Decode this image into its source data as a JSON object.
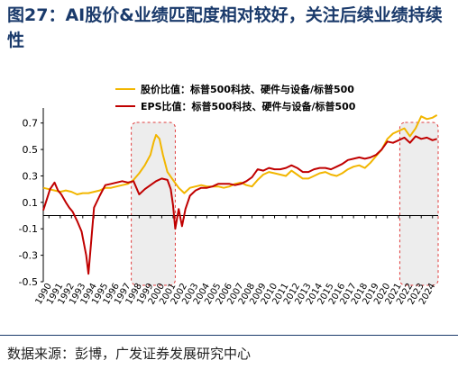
{
  "figure": {
    "title": "图27：AI股价&业绩匹配度相对较好，关注后续业绩持续性",
    "source": "数据来源：彭博，广发证券发展研究中心"
  },
  "chart_data": {
    "type": "line",
    "x_tick_labels": [
      "1990",
      "1991",
      "1992",
      "1993",
      "1994",
      "1995",
      "1996",
      "1997",
      "1998",
      "1999",
      "2000",
      "2001",
      "2002",
      "2003",
      "2004",
      "2005",
      "2006",
      "2007",
      "2008",
      "2009",
      "2010",
      "2011",
      "2012",
      "2013",
      "2014",
      "2015",
      "2016",
      "2017",
      "2018",
      "2019",
      "2020",
      "2021",
      "2022",
      "2023",
      "2024"
    ],
    "y_ticks": [
      -0.5,
      -0.3,
      -0.1,
      0.1,
      0.3,
      0.5,
      0.7
    ],
    "ylim": [
      -0.5,
      0.8
    ],
    "xlim": [
      1990,
      2025
    ],
    "grid": false,
    "legend_position": "top-center",
    "shaded_periods": [
      [
        1997.8,
        2001.7
      ],
      [
        2021.6,
        2025.0
      ]
    ],
    "series": [
      {
        "name": "股价比值：标普500科技、硬件与设备/标普500",
        "color": "#f2b600",
        "points": [
          [
            1990.0,
            0.21
          ],
          [
            1990.5,
            0.2
          ],
          [
            1991.0,
            0.19
          ],
          [
            1991.5,
            0.18
          ],
          [
            1992.0,
            0.19
          ],
          [
            1992.5,
            0.18
          ],
          [
            1993.0,
            0.16
          ],
          [
            1993.5,
            0.17
          ],
          [
            1994.0,
            0.17
          ],
          [
            1994.5,
            0.18
          ],
          [
            1995.0,
            0.19
          ],
          [
            1995.5,
            0.21
          ],
          [
            1996.0,
            0.21
          ],
          [
            1996.5,
            0.22
          ],
          [
            1997.0,
            0.23
          ],
          [
            1997.5,
            0.24
          ],
          [
            1998.0,
            0.27
          ],
          [
            1998.5,
            0.32
          ],
          [
            1999.0,
            0.38
          ],
          [
            1999.5,
            0.46
          ],
          [
            1999.8,
            0.56
          ],
          [
            2000.0,
            0.61
          ],
          [
            2000.3,
            0.58
          ],
          [
            2000.6,
            0.46
          ],
          [
            2001.0,
            0.33
          ],
          [
            2001.5,
            0.27
          ],
          [
            2002.0,
            0.21
          ],
          [
            2002.5,
            0.17
          ],
          [
            2003.0,
            0.21
          ],
          [
            2003.5,
            0.22
          ],
          [
            2004.0,
            0.23
          ],
          [
            2004.5,
            0.22
          ],
          [
            2005.0,
            0.22
          ],
          [
            2005.5,
            0.22
          ],
          [
            2006.0,
            0.21
          ],
          [
            2006.5,
            0.22
          ],
          [
            2007.0,
            0.24
          ],
          [
            2007.5,
            0.25
          ],
          [
            2008.0,
            0.23
          ],
          [
            2008.5,
            0.22
          ],
          [
            2009.0,
            0.27
          ],
          [
            2009.5,
            0.31
          ],
          [
            2010.0,
            0.33
          ],
          [
            2010.5,
            0.32
          ],
          [
            2011.0,
            0.31
          ],
          [
            2011.5,
            0.3
          ],
          [
            2012.0,
            0.34
          ],
          [
            2012.5,
            0.31
          ],
          [
            2013.0,
            0.28
          ],
          [
            2013.5,
            0.28
          ],
          [
            2014.0,
            0.3
          ],
          [
            2014.5,
            0.32
          ],
          [
            2015.0,
            0.33
          ],
          [
            2015.5,
            0.31
          ],
          [
            2016.0,
            0.3
          ],
          [
            2016.5,
            0.32
          ],
          [
            2017.0,
            0.35
          ],
          [
            2017.5,
            0.37
          ],
          [
            2018.0,
            0.38
          ],
          [
            2018.5,
            0.36
          ],
          [
            2019.0,
            0.4
          ],
          [
            2019.5,
            0.45
          ],
          [
            2020.0,
            0.5
          ],
          [
            2020.5,
            0.58
          ],
          [
            2021.0,
            0.62
          ],
          [
            2021.5,
            0.64
          ],
          [
            2022.0,
            0.66
          ],
          [
            2022.5,
            0.6
          ],
          [
            2023.0,
            0.66
          ],
          [
            2023.5,
            0.75
          ],
          [
            2024.0,
            0.73
          ],
          [
            2024.5,
            0.74
          ],
          [
            2024.9,
            0.76
          ]
        ]
      },
      {
        "name": "EPS比值：标普500科技、硬件与设备/标普500",
        "color": "#c00000",
        "points": [
          [
            1990.0,
            0.04
          ],
          [
            1990.3,
            0.12
          ],
          [
            1990.6,
            0.2
          ],
          [
            1991.0,
            0.25
          ],
          [
            1991.3,
            0.19
          ],
          [
            1991.6,
            0.16
          ],
          [
            1992.0,
            0.1
          ],
          [
            1992.3,
            0.06
          ],
          [
            1992.6,
            0.03
          ],
          [
            1993.0,
            -0.04
          ],
          [
            1993.4,
            -0.12
          ],
          [
            1993.8,
            -0.3
          ],
          [
            1994.0,
            -0.44
          ],
          [
            1994.2,
            -0.24
          ],
          [
            1994.5,
            0.06
          ],
          [
            1995.0,
            0.15
          ],
          [
            1995.5,
            0.23
          ],
          [
            1996.0,
            0.24
          ],
          [
            1996.5,
            0.25
          ],
          [
            1997.0,
            0.26
          ],
          [
            1997.5,
            0.25
          ],
          [
            1998.0,
            0.26
          ],
          [
            1998.5,
            0.16
          ],
          [
            1999.0,
            0.2
          ],
          [
            1999.5,
            0.23
          ],
          [
            2000.0,
            0.26
          ],
          [
            2000.5,
            0.28
          ],
          [
            2001.0,
            0.27
          ],
          [
            2001.3,
            0.2
          ],
          [
            2001.5,
            0.08
          ],
          [
            2001.7,
            -0.1
          ],
          [
            2002.0,
            0.05
          ],
          [
            2002.3,
            -0.08
          ],
          [
            2002.6,
            0.05
          ],
          [
            2003.0,
            0.15
          ],
          [
            2003.5,
            0.19
          ],
          [
            2004.0,
            0.21
          ],
          [
            2004.5,
            0.21
          ],
          [
            2005.0,
            0.22
          ],
          [
            2005.5,
            0.24
          ],
          [
            2006.0,
            0.24
          ],
          [
            2006.5,
            0.24
          ],
          [
            2007.0,
            0.23
          ],
          [
            2007.5,
            0.24
          ],
          [
            2008.0,
            0.26
          ],
          [
            2008.5,
            0.29
          ],
          [
            2009.0,
            0.35
          ],
          [
            2009.5,
            0.34
          ],
          [
            2010.0,
            0.36
          ],
          [
            2010.5,
            0.35
          ],
          [
            2011.0,
            0.35
          ],
          [
            2011.5,
            0.36
          ],
          [
            2012.0,
            0.38
          ],
          [
            2012.5,
            0.36
          ],
          [
            2013.0,
            0.33
          ],
          [
            2013.5,
            0.33
          ],
          [
            2014.0,
            0.35
          ],
          [
            2014.5,
            0.36
          ],
          [
            2015.0,
            0.36
          ],
          [
            2015.5,
            0.35
          ],
          [
            2016.0,
            0.37
          ],
          [
            2016.5,
            0.39
          ],
          [
            2017.0,
            0.42
          ],
          [
            2017.5,
            0.43
          ],
          [
            2018.0,
            0.44
          ],
          [
            2018.5,
            0.43
          ],
          [
            2019.0,
            0.44
          ],
          [
            2019.5,
            0.46
          ],
          [
            2020.0,
            0.5
          ],
          [
            2020.5,
            0.56
          ],
          [
            2021.0,
            0.55
          ],
          [
            2021.5,
            0.57
          ],
          [
            2022.0,
            0.59
          ],
          [
            2022.5,
            0.55
          ],
          [
            2023.0,
            0.6
          ],
          [
            2023.5,
            0.58
          ],
          [
            2024.0,
            0.59
          ],
          [
            2024.5,
            0.57
          ],
          [
            2024.9,
            0.58
          ]
        ]
      }
    ]
  }
}
